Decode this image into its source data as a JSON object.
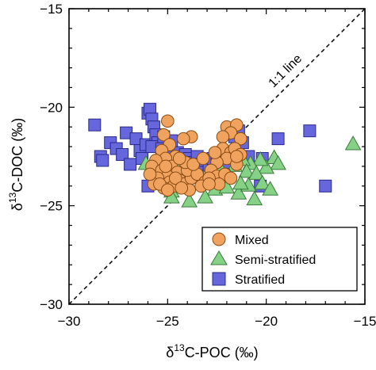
{
  "chart_data": {
    "type": "scatter",
    "xlabel_parts": {
      "delta": "δ",
      "sup": "13",
      "rest": "C-POC (‰)"
    },
    "ylabel_parts": {
      "delta": "δ",
      "sup": "13",
      "rest": "C-DOC (‰)"
    },
    "xlim": [
      -30,
      -15
    ],
    "ylim": [
      -30,
      -15
    ],
    "xticks": [
      -30,
      -25,
      -20,
      -15
    ],
    "yticks": [
      -30,
      -25,
      -20,
      -15
    ],
    "x_tick_labels": [
      "−30",
      "−25",
      "−20",
      "−15"
    ],
    "y_tick_labels": [
      "−30",
      "−25",
      "−20",
      "−15"
    ],
    "reference_line": {
      "label": "1:1 line",
      "style": "dashed",
      "from": [
        -30,
        -30
      ],
      "to": [
        -15,
        -15
      ]
    },
    "legend_position": "bottom-right",
    "series": [
      {
        "name": "Mixed",
        "marker": "circle",
        "color": "#f0a35e",
        "points": [
          [
            -25.0,
            -20.7
          ],
          [
            -22.0,
            -21.0
          ],
          [
            -21.5,
            -20.9
          ],
          [
            -21.8,
            -21.3
          ],
          [
            -21.3,
            -21.6
          ],
          [
            -22.2,
            -21.5
          ],
          [
            -23.8,
            -21.5
          ],
          [
            -24.2,
            -21.6
          ],
          [
            -25.2,
            -21.4
          ],
          [
            -24.9,
            -21.9
          ],
          [
            -25.3,
            -22.2
          ],
          [
            -24.6,
            -22.5
          ],
          [
            -25.1,
            -22.6
          ],
          [
            -22.2,
            -22.1
          ],
          [
            -21.8,
            -22.3
          ],
          [
            -21.6,
            -22.1
          ],
          [
            -21.3,
            -22.4
          ],
          [
            -22.0,
            -22.6
          ],
          [
            -22.5,
            -22.8
          ],
          [
            -21.5,
            -22.9
          ],
          [
            -25.6,
            -22.7
          ],
          [
            -25.8,
            -23.0
          ],
          [
            -25.3,
            -23.2
          ],
          [
            -24.8,
            -23.0
          ],
          [
            -24.5,
            -23.3
          ],
          [
            -25.0,
            -23.5
          ],
          [
            -25.5,
            -23.6
          ],
          [
            -24.9,
            -23.8
          ],
          [
            -24.4,
            -23.7
          ],
          [
            -25.7,
            -23.9
          ],
          [
            -25.9,
            -23.4
          ],
          [
            -24.7,
            -24.0
          ],
          [
            -25.2,
            -24.1
          ],
          [
            -24.2,
            -23.9
          ],
          [
            -23.8,
            -23.6
          ],
          [
            -24.0,
            -23.2
          ],
          [
            -23.5,
            -23.4
          ],
          [
            -22.8,
            -23.2
          ],
          [
            -22.5,
            -23.5
          ],
          [
            -22.1,
            -23.4
          ],
          [
            -21.8,
            -23.6
          ],
          [
            -23.1,
            -23.8
          ],
          [
            -22.4,
            -23.9
          ],
          [
            -23.3,
            -24.0
          ],
          [
            -24.1,
            -22.8
          ],
          [
            -23.7,
            -22.9
          ],
          [
            -25.1,
            -23.0
          ],
          [
            -24.6,
            -23.6
          ],
          [
            -23.9,
            -24.2
          ],
          [
            -25.4,
            -23.9
          ],
          [
            -25.0,
            -24.2
          ],
          [
            -24.3,
            -24.1
          ],
          [
            -22.9,
            -23.6
          ],
          [
            -23.2,
            -22.6
          ],
          [
            -22.6,
            -22.3
          ],
          [
            -21.5,
            -22.5
          ],
          [
            -22.9,
            -23.9
          ],
          [
            -24.4,
            -22.6
          ]
        ]
      },
      {
        "name": "Semi-stratified",
        "marker": "triangle",
        "color": "#85d185",
        "points": [
          [
            -15.6,
            -21.9
          ],
          [
            -19.6,
            -22.6
          ],
          [
            -19.4,
            -22.9
          ],
          [
            -20.0,
            -23.1
          ],
          [
            -20.3,
            -22.7
          ],
          [
            -20.8,
            -22.9
          ],
          [
            -21.2,
            -22.7
          ],
          [
            -21.6,
            -23.0
          ],
          [
            -21.0,
            -23.3
          ],
          [
            -20.5,
            -23.4
          ],
          [
            -21.9,
            -23.5
          ],
          [
            -22.3,
            -23.2
          ],
          [
            -22.7,
            -23.8
          ],
          [
            -23.0,
            -23.4
          ],
          [
            -23.3,
            -23.9
          ],
          [
            -22.6,
            -24.2
          ],
          [
            -23.1,
            -24.6
          ],
          [
            -23.9,
            -24.8
          ],
          [
            -22.0,
            -24.1
          ],
          [
            -21.4,
            -24.4
          ],
          [
            -20.9,
            -24.0
          ],
          [
            -20.2,
            -23.9
          ],
          [
            -19.8,
            -24.2
          ],
          [
            -21.3,
            -23.9
          ],
          [
            -24.2,
            -23.3
          ],
          [
            -24.5,
            -23.0
          ],
          [
            -24.1,
            -22.9
          ],
          [
            -24.8,
            -24.3
          ],
          [
            -24.8,
            -24.6
          ],
          [
            -25.6,
            -23.1
          ],
          [
            -26.1,
            -22.9
          ],
          [
            -25.2,
            -22.8
          ],
          [
            -23.6,
            -23.3
          ],
          [
            -24.4,
            -23.7
          ],
          [
            -20.6,
            -24.7
          ]
        ]
      },
      {
        "name": "Stratified",
        "marker": "square",
        "color": "#6666dd",
        "points": [
          [
            -28.7,
            -20.9
          ],
          [
            -28.4,
            -22.5
          ],
          [
            -28.3,
            -22.7
          ],
          [
            -27.9,
            -21.8
          ],
          [
            -27.6,
            -22.1
          ],
          [
            -27.3,
            -22.4
          ],
          [
            -27.1,
            -21.3
          ],
          [
            -26.9,
            -22.9
          ],
          [
            -26.6,
            -21.6
          ],
          [
            -26.4,
            -22.2
          ],
          [
            -26.3,
            -22.6
          ],
          [
            -26.1,
            -21.9
          ],
          [
            -26.0,
            -20.3
          ],
          [
            -25.9,
            -20.1
          ],
          [
            -25.8,
            -20.6
          ],
          [
            -25.7,
            -21.0
          ],
          [
            -25.6,
            -21.4
          ],
          [
            -25.5,
            -21.8
          ],
          [
            -25.8,
            -22.0
          ],
          [
            -25.3,
            -22.1
          ],
          [
            -25.1,
            -22.4
          ],
          [
            -24.9,
            -22.2
          ],
          [
            -24.7,
            -22.5
          ],
          [
            -24.5,
            -22.3
          ],
          [
            -24.3,
            -22.7
          ],
          [
            -24.1,
            -22.4
          ],
          [
            -23.9,
            -22.6
          ],
          [
            -23.7,
            -22.8
          ],
          [
            -23.5,
            -22.5
          ],
          [
            -23.3,
            -22.9
          ],
          [
            -23.1,
            -22.7
          ],
          [
            -22.9,
            -23.0
          ],
          [
            -22.7,
            -22.6
          ],
          [
            -22.5,
            -22.9
          ],
          [
            -22.3,
            -23.1
          ],
          [
            -22.1,
            -22.8
          ],
          [
            -21.8,
            -22.4
          ],
          [
            -21.6,
            -21.5
          ],
          [
            -21.4,
            -21.2
          ],
          [
            -21.2,
            -21.8
          ],
          [
            -20.9,
            -22.5
          ],
          [
            -20.2,
            -22.6
          ],
          [
            -19.4,
            -21.6
          ],
          [
            -17.8,
            -21.2
          ],
          [
            -17.0,
            -24.0
          ],
          [
            -20.3,
            -24.0
          ],
          [
            -24.6,
            -23.6
          ],
          [
            -25.2,
            -23.5
          ],
          [
            -26.0,
            -24.0
          ],
          [
            -25.4,
            -22.9
          ],
          [
            -24.8,
            -21.7
          ],
          [
            -25.2,
            -21.5
          ]
        ]
      }
    ]
  }
}
